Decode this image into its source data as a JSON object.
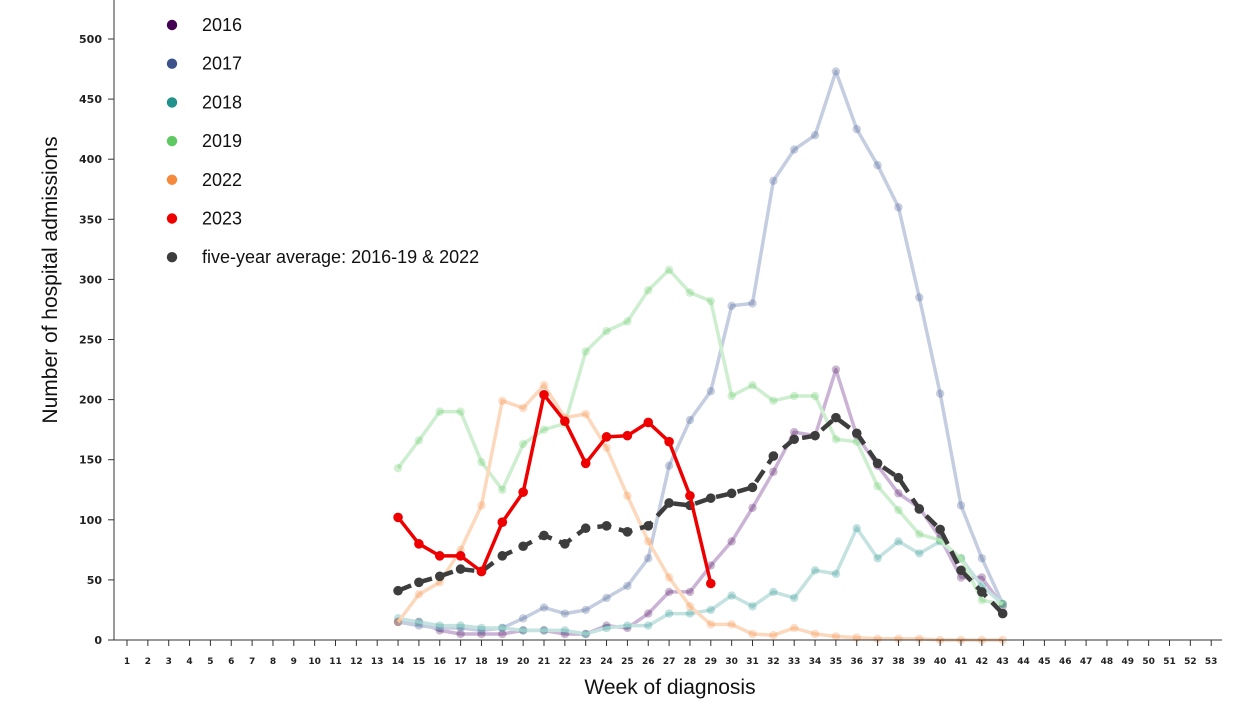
{
  "chart_data": {
    "type": "line",
    "xlabel": "Week of diagnosis",
    "ylabel": "Number of hospital admissions",
    "x_ticks": [
      1,
      2,
      3,
      4,
      5,
      6,
      7,
      8,
      9,
      10,
      11,
      12,
      13,
      14,
      15,
      16,
      17,
      18,
      19,
      20,
      21,
      22,
      23,
      24,
      25,
      26,
      27,
      28,
      29,
      30,
      31,
      32,
      33,
      34,
      35,
      36,
      37,
      38,
      39,
      40,
      41,
      42,
      43,
      44,
      45,
      46,
      47,
      48,
      49,
      50,
      51,
      52,
      53
    ],
    "y_ticks": [
      0,
      50,
      100,
      150,
      200,
      250,
      300,
      350,
      400,
      450,
      500
    ],
    "xlim": [
      1,
      53
    ],
    "ylim": [
      0,
      530
    ],
    "legend_position": "top-left",
    "series": [
      {
        "name": "2016",
        "color": "#440154",
        "marker_color": "#440154",
        "line_color": "#cbb3d6",
        "style": "faded",
        "x": [
          14,
          15,
          16,
          17,
          18,
          19,
          20,
          21,
          22,
          23,
          24,
          25,
          26,
          27,
          28,
          29,
          30,
          31,
          32,
          33,
          34,
          35,
          36,
          37,
          38,
          39,
          40,
          41,
          42,
          43
        ],
        "y": [
          15,
          15,
          8,
          5,
          5,
          5,
          8,
          8,
          5,
          5,
          12,
          10,
          22,
          40,
          40,
          62,
          82,
          110,
          140,
          173,
          170,
          225,
          170,
          145,
          122,
          110,
          85,
          52,
          52,
          28
        ]
      },
      {
        "name": "2017",
        "color": "#3b528b",
        "marker_color": "#3b528b",
        "line_color": "#c5cde1",
        "style": "faded",
        "x": [
          14,
          15,
          16,
          17,
          18,
          19,
          20,
          21,
          22,
          23,
          24,
          25,
          26,
          27,
          28,
          29,
          30,
          31,
          32,
          33,
          34,
          35,
          36,
          37,
          38,
          39,
          40,
          41,
          42,
          43
        ],
        "y": [
          15,
          12,
          10,
          10,
          8,
          10,
          18,
          27,
          22,
          25,
          35,
          45,
          68,
          145,
          183,
          207,
          278,
          280,
          382,
          408,
          420,
          473,
          425,
          395,
          360,
          285,
          205,
          112,
          68,
          30
        ]
      },
      {
        "name": "2018",
        "color": "#21918c",
        "marker_color": "#21918c",
        "line_color": "#c3e2e0",
        "style": "faded",
        "x": [
          14,
          15,
          16,
          17,
          18,
          19,
          20,
          21,
          22,
          23,
          24,
          25,
          26,
          27,
          28,
          29,
          30,
          31,
          32,
          33,
          34,
          35,
          36,
          37,
          38,
          39,
          40,
          41,
          42,
          43
        ],
        "y": [
          18,
          15,
          12,
          12,
          10,
          10,
          8,
          8,
          8,
          5,
          10,
          12,
          12,
          22,
          22,
          25,
          37,
          28,
          40,
          35,
          58,
          55,
          93,
          68,
          82,
          72,
          82,
          68,
          45,
          30
        ]
      },
      {
        "name": "2019",
        "color": "#5ec962",
        "marker_color": "#5ec962",
        "line_color": "#cdeecf",
        "style": "faded",
        "x": [
          14,
          15,
          16,
          17,
          18,
          19,
          20,
          21,
          22,
          23,
          24,
          25,
          26,
          27,
          28,
          29,
          30,
          31,
          32,
          33,
          34,
          35,
          36,
          37,
          38,
          39,
          40,
          41,
          42,
          43
        ],
        "y": [
          143,
          166,
          190,
          190,
          148,
          125,
          163,
          175,
          180,
          240,
          257,
          265,
          291,
          308,
          289,
          282,
          203,
          212,
          199,
          203,
          203,
          167,
          165,
          128,
          108,
          88,
          83,
          68,
          33,
          30
        ]
      },
      {
        "name": "2022",
        "color": "#f68a3c",
        "marker_color": "#f68a3c",
        "line_color": "#fcd8bd",
        "style": "faded",
        "x": [
          14,
          15,
          16,
          17,
          18,
          19,
          20,
          21,
          22,
          23,
          24,
          25,
          26,
          27,
          28,
          29,
          30,
          31,
          32,
          33,
          34,
          35,
          36,
          37,
          38,
          39,
          40,
          41,
          42,
          43
        ],
        "y": [
          15,
          38,
          48,
          75,
          112,
          199,
          193,
          212,
          185,
          188,
          160,
          120,
          82,
          52,
          28,
          13,
          13,
          5,
          4,
          10,
          5,
          3,
          2,
          1,
          1,
          1,
          0,
          0,
          0,
          0
        ]
      },
      {
        "name": "2023",
        "color": "#ef0000",
        "marker_color": "#ef0000",
        "line_color": "#ef0000",
        "style": "solid",
        "x": [
          14,
          15,
          16,
          17,
          18,
          19,
          20,
          21,
          22,
          23,
          24,
          25,
          26,
          27,
          28,
          29
        ],
        "y": [
          102,
          80,
          70,
          70,
          57,
          98,
          123,
          204,
          182,
          147,
          169,
          170,
          181,
          165,
          120,
          47
        ]
      },
      {
        "name": "five-year average: 2016-19 & 2022",
        "color": "#3d3d3d",
        "marker_color": "#3d3d3d",
        "line_color": "#3d3d3d",
        "style": "dashed",
        "x": [
          14,
          15,
          16,
          17,
          18,
          19,
          20,
          21,
          22,
          23,
          24,
          25,
          26,
          27,
          28,
          29,
          30,
          31,
          32,
          33,
          34,
          35,
          36,
          37,
          38,
          39,
          40,
          41,
          42,
          43
        ],
        "y": [
          41,
          48,
          53,
          59,
          57,
          70,
          78,
          87,
          80,
          93,
          95,
          90,
          95,
          114,
          112,
          118,
          122,
          127,
          153,
          167,
          170,
          185,
          172,
          147,
          135,
          109,
          92,
          58,
          40,
          22
        ]
      }
    ]
  }
}
